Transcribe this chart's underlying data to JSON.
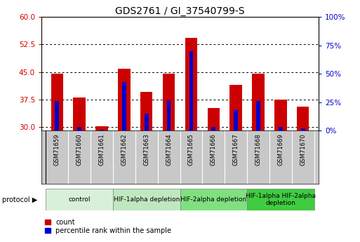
{
  "title": "GDS2761 / GI_37540799-S",
  "samples": [
    "GSM71659",
    "GSM71660",
    "GSM71661",
    "GSM71662",
    "GSM71663",
    "GSM71664",
    "GSM71665",
    "GSM71666",
    "GSM71667",
    "GSM71668",
    "GSM71669",
    "GSM71670"
  ],
  "count_values": [
    44.5,
    38.0,
    30.2,
    45.8,
    39.5,
    44.5,
    54.2,
    35.2,
    41.5,
    44.5,
    37.5,
    35.5
  ],
  "percentile_values": [
    26.0,
    3.0,
    1.0,
    43.0,
    15.0,
    27.0,
    70.0,
    3.0,
    18.0,
    26.0,
    3.0,
    2.0
  ],
  "ymin": 29,
  "ymax": 60,
  "yticks": [
    30,
    37.5,
    45,
    52.5,
    60
  ],
  "y2min": 0,
  "y2max": 100,
  "y2ticks": [
    0,
    25,
    50,
    75,
    100
  ],
  "bar_color_red": "#cc0000",
  "bar_color_blue": "#0000cc",
  "protocol_groups": [
    {
      "label": "control",
      "start": 0,
      "end": 3,
      "color": "#d8f0d8"
    },
    {
      "label": "HIF-1alpha depletion",
      "start": 3,
      "end": 6,
      "color": "#c0e8c0"
    },
    {
      "label": "HIF-2alpha depletion",
      "start": 6,
      "end": 9,
      "color": "#80e080"
    },
    {
      "label": "HIF-1alpha HIF-2alpha\ndepletion",
      "start": 9,
      "end": 12,
      "color": "#40cc40"
    }
  ],
  "left_axis_color": "#cc0000",
  "right_axis_color": "#0000cc",
  "title_fontsize": 10,
  "tick_fontsize": 7.5,
  "sample_fontsize": 6,
  "proto_fontsize": 6.5,
  "legend_fontsize": 7
}
